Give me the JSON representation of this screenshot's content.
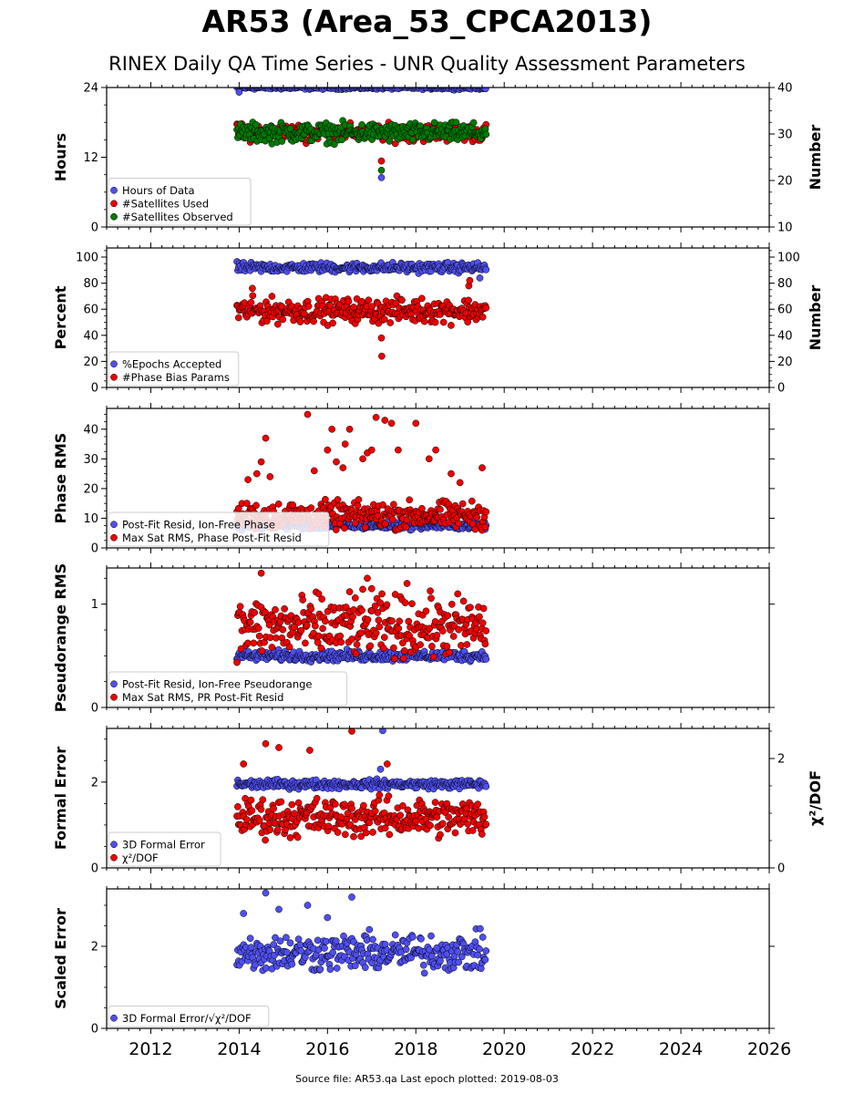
{
  "title": "AR53 (Area_53_CPCA2013)",
  "subtitle": "RINEX Daily QA Time Series - UNR Quality Assessment Parameters",
  "footer": "Source file: AR53.qa Last epoch plotted: 2019-08-03",
  "colors": {
    "blue": "#4f4ff0",
    "red": "#ee0000",
    "green": "#007a00",
    "edge": "#000000"
  },
  "chart_data": [
    {
      "type": "scatter",
      "ylabel": "Hours",
      "ylabel_right": "Number",
      "xlim": [
        2011.0,
        2026.0
      ],
      "ylim": [
        0,
        24
      ],
      "ylim_right": [
        10,
        40
      ],
      "yticks": [
        0,
        12,
        24
      ],
      "yticks_right": [
        10,
        20,
        30,
        40
      ],
      "legend_loc": "lower-left",
      "series": [
        {
          "name": "Hours of Data",
          "color": "blue",
          "axis": "left",
          "x_range": [
            2013.95,
            2019.59
          ],
          "typical": 24,
          "spread": 0.15,
          "outliers": [
            [
              2014.0,
              23.2
            ],
            [
              2017.22,
              8.5
            ],
            [
              2019.58,
              23.8
            ]
          ]
        },
        {
          "name": "#Satellites Used",
          "color": "red",
          "axis": "right",
          "x_range": [
            2013.95,
            2019.59
          ],
          "typical": 30.3,
          "spread": 0.9,
          "outliers": [
            [
              2017.22,
              24.2
            ]
          ]
        },
        {
          "name": "#Satellites Observed",
          "color": "green",
          "axis": "right",
          "x_range": [
            2013.95,
            2019.59
          ],
          "typical": 30.3,
          "spread": 1.0,
          "outliers": [
            [
              2017.22,
              22.2
            ]
          ]
        }
      ]
    },
    {
      "type": "scatter",
      "ylabel": "Percent",
      "ylabel_right": "Number",
      "xlim": [
        2011.0,
        2026.0
      ],
      "ylim": [
        0,
        107
      ],
      "ylim_right": [
        0,
        107
      ],
      "yticks": [
        0,
        20,
        40,
        60,
        80,
        100
      ],
      "yticks_right": [
        0,
        20,
        40,
        60,
        80,
        100
      ],
      "legend_loc": "lower-left",
      "series": [
        {
          "name": "%Epochs Accepted",
          "color": "blue",
          "axis": "left",
          "x_range": [
            2013.95,
            2019.59
          ],
          "typical": 92,
          "spread": 1.8,
          "outliers": [
            [
              2019.45,
              84
            ]
          ]
        },
        {
          "name": "#Phase Bias Params",
          "color": "red",
          "axis": "right",
          "x_range": [
            2013.95,
            2019.59
          ],
          "typical": 59,
          "spread": 4.5,
          "outliers": [
            [
              2014.3,
              76
            ],
            [
              2017.22,
              38
            ],
            [
              2017.23,
              24
            ],
            [
              2019.2,
              78
            ],
            [
              2019.22,
              82
            ]
          ]
        }
      ]
    },
    {
      "type": "scatter",
      "ylabel": "Phase RMS",
      "xlim": [
        2011.0,
        2026.0
      ],
      "ylim": [
        0,
        47
      ],
      "yticks": [
        0,
        10,
        20,
        30,
        40
      ],
      "legend_loc": "lower-left",
      "series": [
        {
          "name": "Post-Fit Resid, Ion-Free Phase",
          "color": "blue",
          "axis": "left",
          "x_range": [
            2013.95,
            2019.59
          ],
          "typical": 7.5,
          "spread": 0.6,
          "outliers": []
        },
        {
          "name": "Max Sat RMS, Phase Post-Fit Resid",
          "color": "red",
          "axis": "left",
          "x_range": [
            2013.95,
            2019.59
          ],
          "typical": 11,
          "spread": 2.2,
          "outliers": [
            [
              2014.6,
              37
            ],
            [
              2014.5,
              29
            ],
            [
              2014.4,
              25
            ],
            [
              2015.55,
              45
            ],
            [
              2015.7,
              26
            ],
            [
              2016.0,
              33
            ],
            [
              2016.1,
              40
            ],
            [
              2016.2,
              29
            ],
            [
              2016.35,
              27
            ],
            [
              2016.4,
              35
            ],
            [
              2016.5,
              40
            ],
            [
              2016.8,
              30
            ],
            [
              2016.9,
              32
            ],
            [
              2017.0,
              33
            ],
            [
              2017.1,
              44
            ],
            [
              2017.3,
              43
            ],
            [
              2017.45,
              42
            ],
            [
              2017.6,
              33
            ],
            [
              2018.0,
              42
            ],
            [
              2018.3,
              30
            ],
            [
              2018.45,
              33
            ],
            [
              2018.8,
              25
            ],
            [
              2019.0,
              22
            ],
            [
              2019.5,
              27
            ],
            [
              2014.7,
              24
            ],
            [
              2014.2,
              23
            ]
          ]
        }
      ]
    },
    {
      "type": "scatter",
      "ylabel": "Pseudorange RMS",
      "xlim": [
        2011.0,
        2026.0
      ],
      "ylim": [
        0,
        1.35
      ],
      "yticks": [
        0,
        1
      ],
      "legend_loc": "lower-left",
      "series": [
        {
          "name": "Post-Fit Resid, Ion-Free Pseudorange",
          "color": "blue",
          "axis": "left",
          "x_range": [
            2013.95,
            2019.59
          ],
          "typical": 0.5,
          "spread": 0.025,
          "outliers": []
        },
        {
          "name": "Max Sat RMS, PR Post-Fit Resid",
          "color": "red",
          "axis": "left",
          "x_range": [
            2013.95,
            2019.59
          ],
          "typical": 0.78,
          "spread": 0.14,
          "outliers": [
            [
              2014.5,
              1.3
            ],
            [
              2016.9,
              1.25
            ],
            [
              2017.0,
              1.15
            ],
            [
              2017.8,
              1.2
            ],
            [
              2015.8,
              1.1
            ],
            [
              2016.5,
              1.12
            ]
          ]
        }
      ]
    },
    {
      "type": "scatter",
      "ylabel": "Formal Error",
      "ylabel_right": "χ²/DOF",
      "xlim": [
        2011.0,
        2026.0
      ],
      "ylim": [
        0,
        3.25
      ],
      "ylim_right": [
        0,
        2.55
      ],
      "yticks": [
        0,
        2
      ],
      "yticks_right": [
        0,
        2
      ],
      "legend_loc": "lower-left",
      "series": [
        {
          "name": "3D Formal Error",
          "color": "blue",
          "axis": "left",
          "x_range": [
            2013.95,
            2019.59
          ],
          "typical": 1.95,
          "spread": 0.05,
          "outliers": [
            [
              2017.25,
              3.2
            ],
            [
              2017.2,
              2.3
            ]
          ]
        },
        {
          "name": "χ²/DOF",
          "color": "red",
          "axis": "right",
          "x_range": [
            2013.95,
            2019.59
          ],
          "typical": 0.92,
          "spread": 0.17,
          "outliers": [
            [
              2014.6,
              2.27
            ],
            [
              2014.9,
              2.2
            ],
            [
              2015.6,
              2.15
            ],
            [
              2016.55,
              2.5
            ],
            [
              2017.35,
              1.9
            ],
            [
              2014.1,
              1.9
            ]
          ]
        }
      ]
    },
    {
      "type": "scatter",
      "ylabel": "Scaled Error",
      "xlim": [
        2011.0,
        2026.0
      ],
      "ylim": [
        0,
        3.4
      ],
      "yticks": [
        0,
        2
      ],
      "legend_loc": "lower-left",
      "series": [
        {
          "name": "3D Formal Error/√χ²/DOF",
          "color": "blue",
          "axis": "left",
          "x_range": [
            2013.95,
            2019.59
          ],
          "typical": 1.85,
          "spread": 0.22,
          "outliers": [
            [
              2014.6,
              3.3
            ],
            [
              2016.55,
              3.2
            ],
            [
              2015.55,
              3.0
            ],
            [
              2014.1,
              2.8
            ],
            [
              2014.9,
              2.9
            ],
            [
              2016.0,
              2.7
            ]
          ]
        }
      ]
    }
  ],
  "x_axis": {
    "ticks": [
      2012,
      2014,
      2016,
      2018,
      2020,
      2022,
      2024,
      2026
    ]
  }
}
